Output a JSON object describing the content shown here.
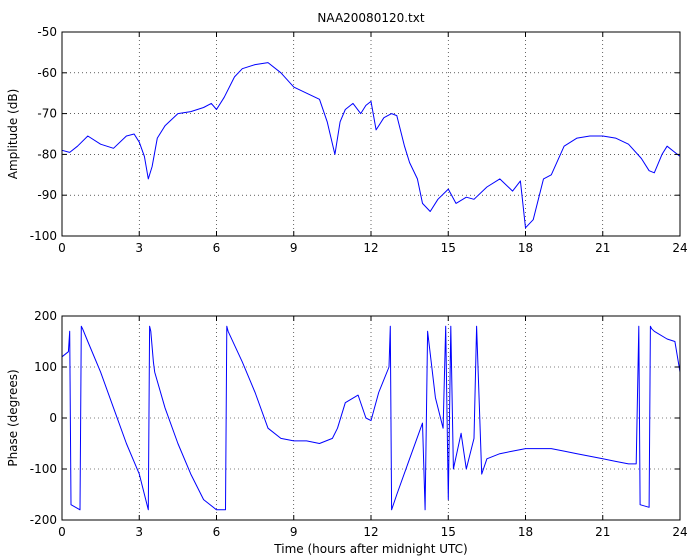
{
  "window_title": "NAA20080120.txt",
  "chart_data": [
    {
      "type": "line",
      "title": "NAA20080120.txt",
      "xlabel": "",
      "ylabel": "Amplitude (dB)",
      "xlim": [
        0,
        24
      ],
      "ylim": [
        -100,
        -50
      ],
      "xticks": [
        0,
        3,
        6,
        9,
        12,
        15,
        18,
        21,
        24
      ],
      "yticks": [
        -100,
        -90,
        -80,
        -70,
        -60,
        -50
      ],
      "grid": "dotted",
      "line_color": "#0000ff",
      "series": [
        {
          "x": [
            0,
            0.3,
            0.6,
            1.0,
            1.5,
            2.0,
            2.5,
            2.8,
            3.0,
            3.2,
            3.35,
            3.5,
            3.7,
            4.0,
            4.5,
            5.0,
            5.5,
            5.8,
            6.0,
            6.3,
            6.7,
            7.0,
            7.5,
            8.0,
            8.5,
            9.0,
            9.5,
            10.0,
            10.3,
            10.6,
            10.8,
            11.0,
            11.3,
            11.6,
            11.8,
            12.0,
            12.2,
            12.5,
            12.8,
            13.0,
            13.3,
            13.5,
            13.8,
            14.0,
            14.3,
            14.6,
            15.0,
            15.3,
            15.7,
            16.0,
            16.5,
            17.0,
            17.5,
            17.8,
            18.0,
            18.3,
            18.7,
            19.0,
            19.5,
            20.0,
            20.5,
            21.0,
            21.5,
            22.0,
            22.5,
            22.8,
            23.0,
            23.3,
            23.5,
            23.8,
            24.0
          ],
          "y": [
            -79,
            -79.5,
            -78,
            -75.5,
            -77.5,
            -78.5,
            -75.5,
            -75,
            -77,
            -80.5,
            -86,
            -83,
            -76,
            -73,
            -70,
            -69.5,
            -68.5,
            -67.5,
            -69,
            -66,
            -61,
            -59,
            -58,
            -57.5,
            -60,
            -63.5,
            -65,
            -66.5,
            -72,
            -80,
            -72,
            -69,
            -67.5,
            -70,
            -68,
            -67,
            -74,
            -71,
            -70,
            -70.5,
            -78,
            -82,
            -86,
            -92,
            -94,
            -91,
            -88.5,
            -92,
            -90.5,
            -91,
            -88,
            -86,
            -89,
            -86.5,
            -98,
            -96,
            -86,
            -85,
            -78,
            -76,
            -75.5,
            -75.5,
            -76,
            -77.5,
            -81,
            -84,
            -84.5,
            -80,
            -78,
            -79.5,
            -80.5
          ]
        }
      ]
    },
    {
      "type": "line",
      "title": "",
      "xlabel": "Time (hours after midnight UTC)",
      "ylabel": "Phase (degrees)",
      "xlim": [
        0,
        24
      ],
      "ylim": [
        -200,
        200
      ],
      "xticks": [
        0,
        3,
        6,
        9,
        12,
        15,
        18,
        21,
        24
      ],
      "yticks": [
        -200,
        -100,
        0,
        100,
        200
      ],
      "grid": "dotted",
      "line_color": "#0000ff",
      "series": [
        {
          "x": [
            0,
            0.25,
            0.3,
            0.35,
            0.7,
            0.75,
            0.8,
            1.0,
            1.5,
            2.0,
            2.5,
            3.0,
            3.35,
            3.4,
            3.45,
            3.55,
            3.6,
            4.0,
            4.5,
            5.0,
            5.5,
            6.0,
            6.35,
            6.4,
            6.45,
            7.0,
            7.5,
            8.0,
            8.5,
            9.0,
            9.5,
            10.0,
            10.5,
            10.7,
            11.0,
            11.5,
            11.8,
            12.0,
            12.3,
            12.7,
            12.75,
            12.8,
            13.0,
            13.5,
            14.0,
            14.1,
            14.2,
            14.5,
            14.8,
            14.9,
            15.0,
            15.1,
            15.2,
            15.5,
            15.7,
            16.0,
            16.1,
            16.3,
            16.5,
            17.0,
            17.5,
            18.0,
            18.5,
            19.0,
            19.5,
            20.0,
            20.5,
            21.0,
            21.5,
            22.0,
            22.3,
            22.4,
            22.45,
            22.8,
            22.85,
            22.9,
            23.0,
            23.5,
            23.8,
            24.0
          ],
          "y": [
            120,
            130,
            170,
            -170,
            -180,
            180,
            175,
            150,
            90,
            20,
            -50,
            -110,
            -180,
            180,
            170,
            110,
            90,
            20,
            -50,
            -110,
            -160,
            -180,
            -180,
            180,
            170,
            110,
            50,
            -20,
            -40,
            -45,
            -45,
            -50,
            -40,
            -20,
            30,
            45,
            0,
            -5,
            50,
            100,
            180,
            -180,
            -150,
            -80,
            -10,
            -180,
            170,
            40,
            -20,
            180,
            -160,
            180,
            -100,
            -30,
            -100,
            -40,
            180,
            -110,
            -80,
            -70,
            -65,
            -60,
            -60,
            -60,
            -65,
            -70,
            -75,
            -80,
            -85,
            -90,
            -90,
            180,
            -170,
            -175,
            180,
            175,
            170,
            155,
            150,
            90
          ]
        }
      ]
    }
  ]
}
